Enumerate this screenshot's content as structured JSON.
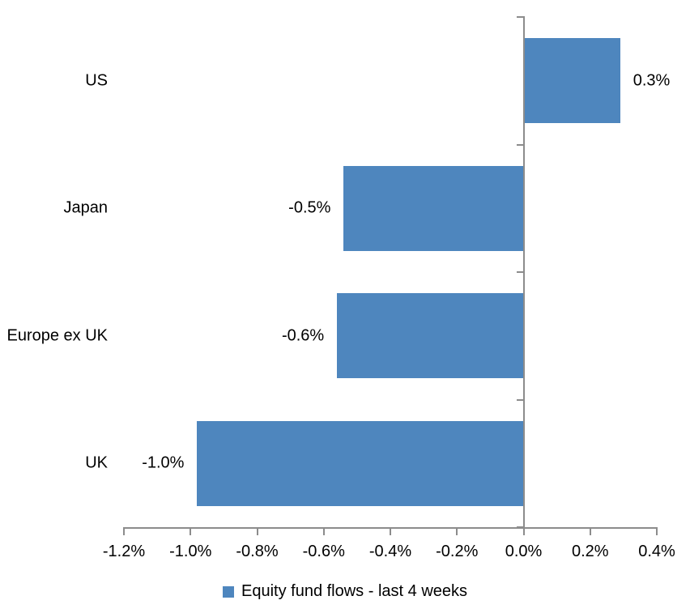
{
  "chart_data": {
    "type": "bar",
    "orientation": "horizontal",
    "title": "",
    "categories": [
      "US",
      "Japan",
      "Europe ex UK",
      "UK"
    ],
    "values": [
      0.3,
      -0.5,
      -0.6,
      -1.0
    ],
    "value_labels": [
      "0.3%",
      "-0.5%",
      "-0.6%",
      "-1.0%"
    ],
    "bar_render_values": [
      0.29,
      -0.54,
      -0.56,
      -0.98
    ],
    "legend": {
      "label": "Equity fund flows - last 4 weeks",
      "position": "bottom-center"
    },
    "x_axis": {
      "min": -1.2,
      "max": 0.4,
      "tick_step": 0.2,
      "tick_labels": [
        "-1.2%",
        "-1.0%",
        "-0.8%",
        "-0.6%",
        "-0.4%",
        "-0.2%",
        "0.0%",
        "0.2%",
        "0.4%"
      ]
    },
    "grid": false,
    "colors": {
      "bar": "#4E86BE",
      "axis": "#8C8C8C",
      "text": "#000000",
      "background": "#FFFFFF"
    }
  }
}
